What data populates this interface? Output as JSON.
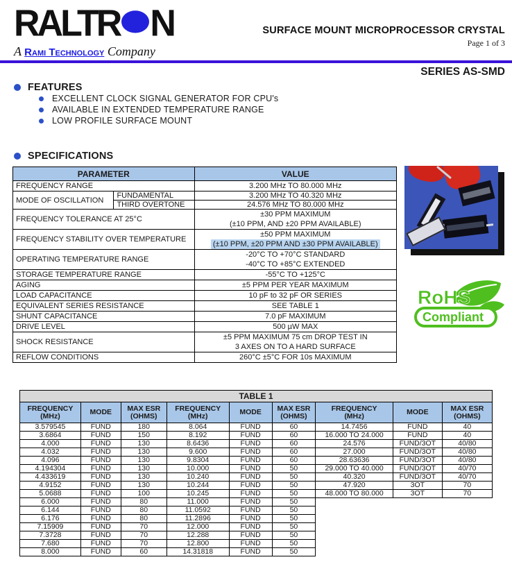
{
  "header": {
    "brand": "RALTR",
    "brand_end": "N",
    "tagline_prefix": "A",
    "tagline_brand": "Rami Technology",
    "tagline_suffix": "Company",
    "doc_title": "SURFACE MOUNT MICROPROCESSOR CRYSTAL",
    "page_label": "Page 1 of 3",
    "series": "SERIES AS-SMD"
  },
  "features": {
    "heading": "FEATURES",
    "items": [
      "EXCELLENT CLOCK SIGNAL GENERATOR FOR CPU's",
      "AVAILABLE IN EXTENDED TEMPERATURE RANGE",
      "LOW PROFILE SURFACE MOUNT"
    ]
  },
  "specifications": {
    "heading": "SPECIFICATIONS",
    "col_param": "PARAMETER",
    "col_value": "VALUE",
    "rows": [
      {
        "param": "FREQUENCY RANGE",
        "value": [
          "3.200 MHz TO 80.000 MHz"
        ]
      },
      {
        "param": "MODE OF OSCILLATION",
        "subrows": [
          {
            "sub": "FUNDAMENTAL",
            "value": "3.200 MHz TO 40.320 MHz"
          },
          {
            "sub": "THIRD OVERTONE",
            "value": "24.576 MHz TO 80.000 MHz"
          }
        ]
      },
      {
        "param": "FREQUENCY TOLERANCE AT 25°C",
        "value": [
          "±30 PPM MAXIMUM",
          "(±10 PPM, AND ±20 PPM AVAILABLE)"
        ]
      },
      {
        "param": "FREQUENCY STABILITY OVER TEMPERATURE",
        "value": [
          "±50 PPM MAXIMUM",
          "(±10 PPM, ±20 PPM AND ±30 PPM AVAILABLE)"
        ],
        "highlight_index": 1
      },
      {
        "param": "OPERATING TEMPERATURE RANGE",
        "value": [
          "-20°C TO +70°C STANDARD",
          "-40°C TO +85°C EXTENDED"
        ]
      },
      {
        "param": "STORAGE TEMPERATURE RANGE",
        "value": [
          "-55°C TO +125°C"
        ]
      },
      {
        "param": "AGING",
        "value": [
          "±5 PPM PER YEAR MAXIMUM"
        ]
      },
      {
        "param": "LOAD CAPACITANCE",
        "value": [
          "10 pF to 32 pF OR SERIES"
        ]
      },
      {
        "param": "EQUIVALENT SERIES RESISTANCE",
        "value": [
          "SEE TABLE 1"
        ]
      },
      {
        "param": "SHUNT CAPACITANCE",
        "value": [
          "7.0 pF MAXIMUM"
        ]
      },
      {
        "param": "DRIVE LEVEL",
        "value": [
          "500 µW MAX"
        ]
      },
      {
        "param": "SHOCK RESISTANCE",
        "value": [
          "±5 PPM MAXIMUM 75 cm DROP TEST IN",
          "3 AXES ON TO A HARD SURFACE"
        ]
      },
      {
        "param": "REFLOW CONDITIONS",
        "value": [
          "260°C ±5°C FOR 10s MAXIMUM"
        ]
      }
    ]
  },
  "rohs": {
    "line1": "RoHS",
    "line2": "Compliant"
  },
  "table1": {
    "title": "TABLE 1",
    "headers": {
      "freq": "FREQUENCY\n(MHz)",
      "mode": "MODE",
      "esr": "MAX ESR\n(OHMS)"
    },
    "rows": [
      [
        "3.579545",
        "FUND",
        "180",
        "8.064",
        "FUND",
        "60",
        "14.7456",
        "FUND",
        "40"
      ],
      [
        "3.6864",
        "FUND",
        "150",
        "8.192",
        "FUND",
        "60",
        "16.000 TO 24.000",
        "FUND",
        "40"
      ],
      [
        "4.000",
        "FUND",
        "130",
        "8.6436",
        "FUND",
        "60",
        "24.576",
        "FUND/3OT",
        "40/80"
      ],
      [
        "4.032",
        "FUND",
        "130",
        "9.600",
        "FUND",
        "60",
        "27.000",
        "FUND/3OT",
        "40/80"
      ],
      [
        "4.096",
        "FUND",
        "130",
        "9.8304",
        "FUND",
        "60",
        "28.63636",
        "FUND/3OT",
        "40/80"
      ],
      [
        "4.194304",
        "FUND",
        "130",
        "10.000",
        "FUND",
        "50",
        "29.000 TO 40.000",
        "FUND/3OT",
        "40/70"
      ],
      [
        "4.433619",
        "FUND",
        "130",
        "10.240",
        "FUND",
        "50",
        "40.320",
        "FUND/3OT",
        "40/70"
      ],
      [
        "4.9152",
        "FUND",
        "130",
        "10.244",
        "FUND",
        "50",
        "47.920",
        "3OT",
        "70"
      ],
      [
        "5.0688",
        "FUND",
        "100",
        "10.245",
        "FUND",
        "50",
        "48.000 TO 80.000",
        "3OT",
        "70"
      ],
      [
        "6.000",
        "FUND",
        "80",
        "11.000",
        "FUND",
        "50"
      ],
      [
        "6.144",
        "FUND",
        "80",
        "11.0592",
        "FUND",
        "50"
      ],
      [
        "6.176",
        "FUND",
        "80",
        "11.2896",
        "FUND",
        "50"
      ],
      [
        "7.15909",
        "FUND",
        "70",
        "12.000",
        "FUND",
        "50"
      ],
      [
        "7.3728",
        "FUND",
        "70",
        "12.288",
        "FUND",
        "50"
      ],
      [
        "7.680",
        "FUND",
        "70",
        "12.800",
        "FUND",
        "50"
      ],
      [
        "8.000",
        "FUND",
        "60",
        "14.31818",
        "FUND",
        "50"
      ]
    ]
  },
  "colors": {
    "accent_rule_blue": "#3912d8",
    "bullet_blue": "#2b50c8",
    "table_header_blue": "#a8c6e8",
    "highlight_blue": "#b9d5f0",
    "table1_title_grey": "#d8d8d8",
    "logo_dot_blue": "#2222dd",
    "rami_link_blue": "#1a1ae6",
    "rohs_green": "#4fbf1f",
    "photo_bg_blue": "#3c55b8"
  }
}
